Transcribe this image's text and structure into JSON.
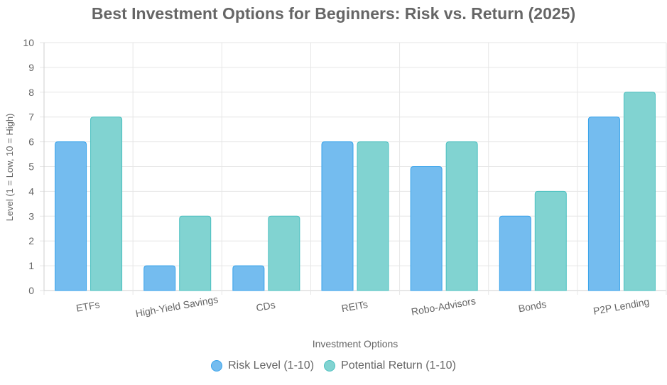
{
  "chart_data": {
    "type": "bar",
    "title": "Best Investment Options for Beginners: Risk vs. Return (2025)",
    "xlabel": "Investment Options",
    "ylabel": "Level (1 = Low, 10 = High)",
    "ylim": [
      0,
      10
    ],
    "yticks": [
      "0",
      "1",
      "2",
      "3",
      "4",
      "5",
      "6",
      "7",
      "8",
      "9",
      "10"
    ],
    "grid": true,
    "legend_position": "bottom",
    "categories": [
      "ETFs",
      "High-Yield Savings",
      "CDs",
      "REITs",
      "Robo-Advisors",
      "Bonds",
      "P2P Lending"
    ],
    "series": [
      {
        "name": "Risk Level (1-10)",
        "values": [
          6,
          1,
          1,
          6,
          5,
          3,
          7
        ],
        "color": "#36a2eb",
        "fill": "#74bcef"
      },
      {
        "name": "Potential Return (1-10)",
        "values": [
          7,
          3,
          3,
          6,
          6,
          4,
          8
        ],
        "color": "#4bc0c0",
        "fill": "#81d3d1"
      }
    ]
  }
}
